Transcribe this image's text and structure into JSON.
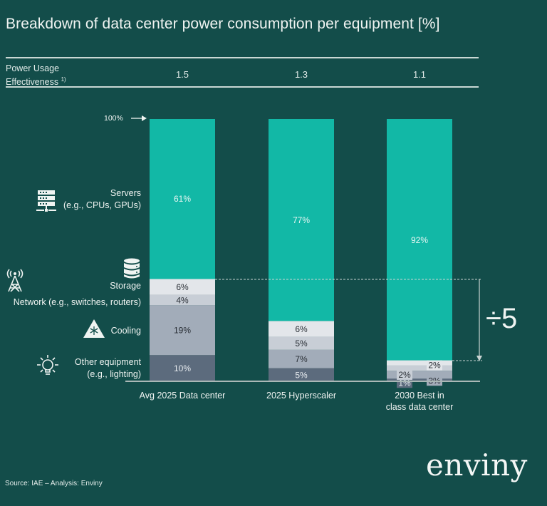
{
  "title": "Breakdown of data center power consumption per equipment [%]",
  "pue": {
    "label_line1": "Power Usage",
    "label_line2": "Effectiveness",
    "footnote": "1)",
    "values": [
      "1.5",
      "1.3",
      "1.1"
    ]
  },
  "hundred_label": "100%",
  "reduction_label": "÷5",
  "legend": {
    "servers": {
      "line1": "Servers",
      "line2": "(e.g., CPUs, GPUs)"
    },
    "storage": {
      "line1": "Storage"
    },
    "network": {
      "line1": "Network (e.g., switches, routers)"
    },
    "cooling": {
      "line1": "Cooling"
    },
    "other": {
      "line1": "Other equipment",
      "line2": "(e.g., lighting)"
    }
  },
  "icons": {
    "servers": "server-rack-icon",
    "storage": "database-icon",
    "network": "antenna-tower-icon",
    "cooling": "snowflake-warning-icon",
    "other": "lightbulb-icon"
  },
  "colors": {
    "background": "#134d4a",
    "servers": "#12b8a6",
    "storage": "#e3e6ea",
    "network": "#c8ced6",
    "cooling": "#a2acb9",
    "other": "#5c6b7d"
  },
  "source": "Source: IAE – Analysis: Enviny",
  "logo": "enviny",
  "chart_data": {
    "type": "bar",
    "stacked": true,
    "title": "Breakdown of data center power consumption per equipment [%]",
    "xlabel": "",
    "ylabel": "",
    "ylim": [
      0,
      100
    ],
    "grid": false,
    "legend_placement": "left",
    "categories": [
      "Avg 2025 Data center",
      "2025 Hyperscaler",
      "2030 Best in class data center"
    ],
    "category_lines": [
      [
        "Avg 2025 Data center"
      ],
      [
        "2025 Hyperscaler"
      ],
      [
        "2030 Best in",
        "class data center"
      ]
    ],
    "series": [
      {
        "name": "Other equipment (e.g., lighting)",
        "key": "other",
        "values": [
          10,
          5,
          1
        ],
        "labels": [
          "10%",
          "5%",
          "1%"
        ]
      },
      {
        "name": "Cooling",
        "key": "cooling",
        "values": [
          19,
          7,
          3
        ],
        "labels": [
          "19%",
          "7%",
          "3%"
        ]
      },
      {
        "name": "Network (e.g., switches, routers)",
        "key": "network",
        "values": [
          4,
          5,
          2
        ],
        "labels": [
          "4%",
          "5%",
          "2%"
        ]
      },
      {
        "name": "Storage",
        "key": "storage",
        "values": [
          6,
          6,
          2
        ],
        "labels": [
          "6%",
          "6%",
          "2%"
        ]
      },
      {
        "name": "Servers (e.g., CPUs, GPUs)",
        "key": "servers",
        "values": [
          61,
          77,
          92
        ],
        "labels": [
          "61%",
          "77%",
          "92%"
        ]
      }
    ],
    "annotations": [
      "100%",
      "÷5"
    ]
  }
}
